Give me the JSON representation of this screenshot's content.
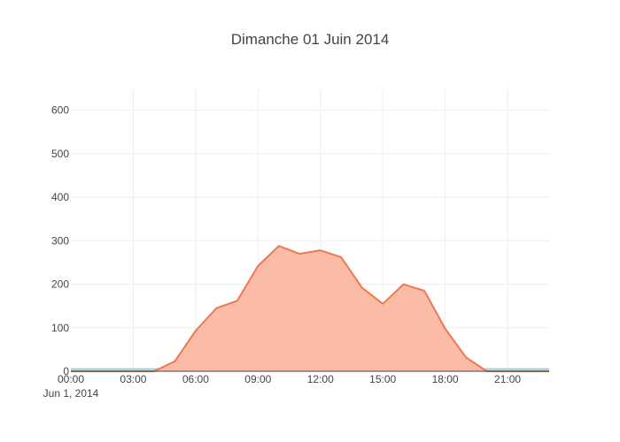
{
  "chart_data": {
    "type": "area",
    "title": "Dimanche 01 Juin 2014",
    "date_label": "Jun 1, 2014",
    "xlabel": "",
    "ylabel": "",
    "xlim": [
      "00:00",
      "23:00"
    ],
    "ylim": [
      0,
      650
    ],
    "x_ticks": [
      "00:00",
      "03:00",
      "06:00",
      "09:00",
      "12:00",
      "15:00",
      "18:00",
      "21:00"
    ],
    "y_ticks": [
      0,
      100,
      200,
      300,
      400,
      500,
      600
    ],
    "grid": true,
    "x": [
      "00:00",
      "01:00",
      "02:00",
      "03:00",
      "04:00",
      "05:00",
      "06:00",
      "07:00",
      "08:00",
      "09:00",
      "10:00",
      "11:00",
      "12:00",
      "13:00",
      "14:00",
      "15:00",
      "16:00",
      "17:00",
      "18:00",
      "19:00",
      "20:00",
      "21:00",
      "22:00",
      "23:00"
    ],
    "series": [
      {
        "color": "#f07850",
        "fill": "#fbb8a2",
        "values": [
          0,
          0,
          0,
          0,
          0,
          23,
          93,
          145,
          162,
          242,
          288,
          270,
          278,
          262,
          192,
          155,
          200,
          185,
          98,
          32,
          0,
          0,
          0,
          0
        ]
      },
      {
        "color": "#9ccfd8",
        "fill": "#cfe7ec",
        "values": [
          5,
          5,
          5,
          5,
          5,
          5,
          5,
          5,
          5,
          5,
          5,
          5,
          5,
          5,
          5,
          5,
          5,
          5,
          5,
          5,
          5,
          5,
          5,
          5
        ]
      }
    ],
    "colors": {
      "grid": "#eeeeee",
      "text": "#444444",
      "axis": "#444444"
    }
  }
}
